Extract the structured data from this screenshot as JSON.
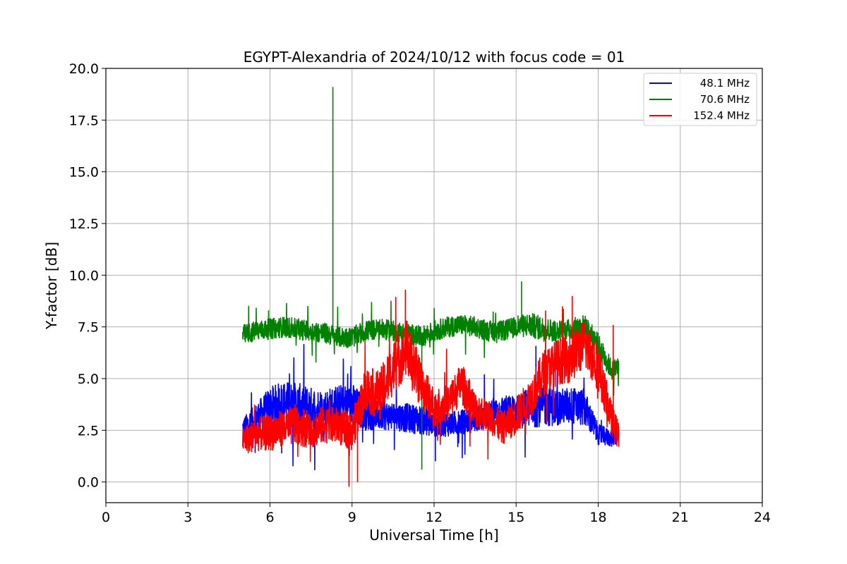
{
  "chart_data": {
    "type": "line",
    "title": "EGYPT-Alexandria of 2024/10/12 with focus code = 01",
    "xlabel": "Universal Time [h]",
    "ylabel": "Y-factor [dB]",
    "xlim": [
      0,
      24
    ],
    "ylim": [
      -1,
      20
    ],
    "xticks": [
      0,
      3,
      6,
      9,
      12,
      15,
      18,
      21,
      24
    ],
    "yticks": [
      0.0,
      2.5,
      5.0,
      7.5,
      10.0,
      12.5,
      15.0,
      17.5,
      20.0
    ],
    "xtick_labels": [
      "0",
      "3",
      "6",
      "9",
      "12",
      "15",
      "18",
      "21",
      "24"
    ],
    "ytick_labels": [
      "0.0",
      "2.5",
      "5.0",
      "7.5",
      "10.0",
      "12.5",
      "15.0",
      "17.5",
      "20.0"
    ],
    "grid": true,
    "legend_position": "top-right",
    "series": [
      {
        "name": "48.1 MHz",
        "color": "#0000ff",
        "x": [
          5.0,
          5.5,
          6.0,
          6.5,
          7.0,
          7.5,
          8.0,
          8.5,
          9.0,
          9.5,
          10.0,
          10.5,
          11.0,
          11.5,
          12.0,
          12.5,
          13.0,
          13.5,
          14.0,
          14.5,
          15.0,
          15.5,
          16.0,
          16.5,
          17.0,
          17.5,
          18.0,
          18.5,
          18.75
        ],
        "y": [
          2.6,
          3.1,
          3.6,
          3.8,
          3.7,
          3.6,
          3.5,
          3.7,
          3.8,
          3.3,
          3.2,
          3.2,
          3.1,
          3.0,
          2.8,
          2.8,
          2.9,
          3.0,
          3.3,
          3.4,
          3.4,
          3.6,
          3.7,
          3.6,
          3.7,
          3.6,
          2.3,
          2.1,
          2.4
        ],
        "spread": [
          0.5,
          0.7,
          1.0,
          1.1,
          1.1,
          1.0,
          1.0,
          1.0,
          1.0,
          0.8,
          0.7,
          0.7,
          0.7,
          0.7,
          0.6,
          0.6,
          0.6,
          0.6,
          0.7,
          0.8,
          0.8,
          1.0,
          1.0,
          0.9,
          0.9,
          0.9,
          0.5,
          0.4,
          0.5
        ]
      },
      {
        "name": "70.6 MHz",
        "color": "#008000",
        "x": [
          5.0,
          5.5,
          6.0,
          6.5,
          7.0,
          7.5,
          8.0,
          8.5,
          9.0,
          9.5,
          10.0,
          10.5,
          11.0,
          11.5,
          12.0,
          12.5,
          13.0,
          13.5,
          14.0,
          14.5,
          15.0,
          15.5,
          16.0,
          16.5,
          17.0,
          17.5,
          18.0,
          18.5,
          18.75
        ],
        "y": [
          7.1,
          7.3,
          7.4,
          7.5,
          7.4,
          7.3,
          7.2,
          7.0,
          7.0,
          7.3,
          7.4,
          7.3,
          7.2,
          7.0,
          7.3,
          7.5,
          7.6,
          7.5,
          7.3,
          7.3,
          7.5,
          7.6,
          7.4,
          7.3,
          7.4,
          7.6,
          6.6,
          5.4,
          5.6
        ],
        "spread": [
          0.5,
          0.5,
          0.5,
          0.5,
          0.5,
          0.5,
          0.5,
          0.5,
          0.5,
          0.5,
          0.5,
          0.5,
          0.5,
          0.5,
          0.5,
          0.5,
          0.5,
          0.5,
          0.5,
          0.5,
          0.5,
          0.6,
          0.6,
          0.5,
          0.5,
          0.5,
          0.6,
          0.5,
          0.5
        ]
      },
      {
        "name": "152.4 MHz",
        "color": "#ff0000",
        "x": [
          5.0,
          5.5,
          6.0,
          6.5,
          7.0,
          7.5,
          8.0,
          8.5,
          9.0,
          9.5,
          10.0,
          10.5,
          11.0,
          11.5,
          12.0,
          12.5,
          13.0,
          13.5,
          14.0,
          14.5,
          15.0,
          15.5,
          16.0,
          16.5,
          17.0,
          17.5,
          18.0,
          18.5,
          18.75
        ],
        "y": [
          2.0,
          2.3,
          2.4,
          2.6,
          2.8,
          2.5,
          2.8,
          2.7,
          2.4,
          4.5,
          4.2,
          5.5,
          6.5,
          4.8,
          3.6,
          3.8,
          4.8,
          3.5,
          3.2,
          2.6,
          3.2,
          4.0,
          5.3,
          5.8,
          6.0,
          6.7,
          5.6,
          3.0,
          2.2
        ],
        "spread": [
          0.7,
          0.8,
          0.9,
          0.9,
          1.0,
          0.9,
          0.9,
          0.9,
          0.9,
          1.1,
          1.2,
          1.3,
          1.4,
          1.2,
          0.9,
          0.9,
          1.0,
          0.9,
          0.8,
          0.8,
          0.9,
          1.0,
          1.1,
          1.1,
          1.2,
          1.2,
          1.2,
          0.8,
          0.7
        ]
      }
    ],
    "annotations_spikes": [
      {
        "series": "70.6 MHz",
        "x": 8.3,
        "y": 19.1
      },
      {
        "series": "70.6 MHz",
        "x": 11.55,
        "y": 0.6
      },
      {
        "series": "70.6 MHz",
        "x": 15.2,
        "y": 9.7
      },
      {
        "series": "152.4 MHz",
        "x": 10.95,
        "y": 9.3
      },
      {
        "series": "152.4 MHz",
        "x": 17.05,
        "y": 9.0
      },
      {
        "series": "152.4 MHz",
        "x": 18.55,
        "y": 7.6
      },
      {
        "series": "152.4 MHz",
        "x": 9.2,
        "y": 0.0
      },
      {
        "series": "48.1 MHz",
        "x": 12.05,
        "y": 1.0
      }
    ]
  }
}
